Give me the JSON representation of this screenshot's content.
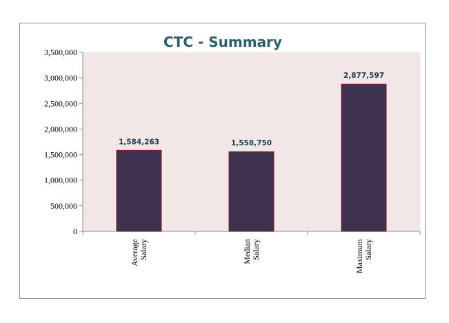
{
  "chart_data": {
    "type": "bar",
    "title": "CTC - Summary",
    "xlabel": "",
    "ylabel": "",
    "categories": [
      [
        "Average",
        "Salary"
      ],
      [
        "Median",
        "Salary"
      ],
      [
        "Maximum",
        "Salary"
      ]
    ],
    "values": [
      1584263,
      1558750,
      2877597
    ],
    "data_labels": [
      "1,584,263",
      "1,558,750",
      "2,877,597"
    ],
    "ylim": [
      0,
      3500000
    ],
    "yticks": [
      0,
      500000,
      1000000,
      1500000,
      2000000,
      2500000,
      3000000,
      3500000
    ],
    "ytick_labels": [
      "0",
      "500,000",
      "1,000,000",
      "1,500,000",
      "2,000,000",
      "2,500,000",
      "3,000,000",
      "3,500,000"
    ],
    "grid": false,
    "legend": "none",
    "colors": {
      "bar_fill": "#3f3150",
      "bar_edge": "#8b1a2b",
      "plot_background": "#f2e6e6",
      "title": "#2c5d6b",
      "data_label": "#1f3d4f"
    }
  }
}
